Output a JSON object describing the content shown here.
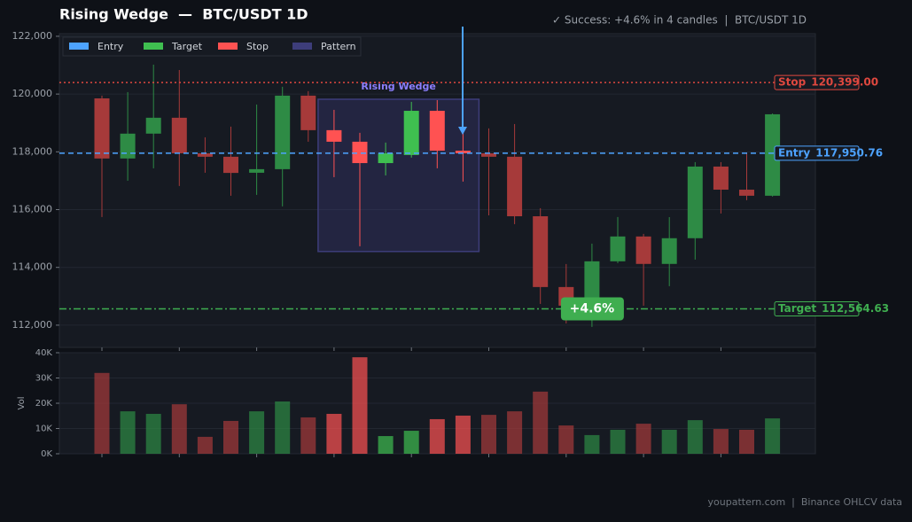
{
  "chart_data": {
    "type": "candlestick",
    "title": "Rising Wedge  —  BTC/USDT 1D",
    "subtitle": "✓ Success: +4.6% in 4 candles  |  BTC/USDT 1D",
    "footer": "youpattern.com  |  Binance OHLCV data",
    "open": [
      119850,
      117770,
      118630,
      119180,
      117950,
      117830,
      117276,
      117400,
      119945,
      118750,
      118350,
      117610,
      117890,
      119420,
      118040,
      117950,
      117830,
      115770,
      113320,
      112400,
      114210,
      115070,
      114120,
      115010,
      117490,
      116690,
      116480
    ],
    "high": [
      119945,
      120068,
      121018,
      120834,
      118503,
      118871,
      119638,
      120252,
      120100,
      119454,
      118656,
      118320,
      119730,
      119790,
      118870,
      118810,
      118963,
      116049,
      114117,
      114822,
      115742,
      115160,
      115740,
      117644,
      117644,
      117980,
      119330
    ],
    "low": [
      115742,
      117000,
      117429,
      116816,
      117276,
      116479,
      116510,
      116110,
      118350,
      117123,
      114730,
      117184,
      117800,
      117430,
      116970,
      115800,
      115497,
      112736,
      112060,
      111939,
      114147,
      112675,
      113350,
      114270,
      115865,
      116325,
      116450
    ],
    "close": [
      117770,
      118630,
      119180,
      117950,
      117830,
      117270,
      117400,
      119945,
      118750,
      118350,
      117610,
      117950,
      119420,
      118040,
      117950,
      117830,
      115770,
      113320,
      112675,
      114210,
      115070,
      114120,
      115010,
      117490,
      116690,
      116480,
      119300
    ],
    "candle_colors": [
      "#a63a3a",
      "#2e8b45",
      "#2e8b45",
      "#a63a3a",
      "#a63a3a",
      "#a63a3a",
      "#2e8b45",
      "#2e8b45",
      "#a63a3a",
      "#ff5252",
      "#ff5252",
      "#3fbf50",
      "#3fbf50",
      "#ff5252",
      "#ff5252",
      "#a63a3a",
      "#a63a3a",
      "#a63a3a",
      "#a63a3a",
      "#2e8b45",
      "#2e8b45",
      "#a63a3a",
      "#2e8b45",
      "#2e8b45",
      "#a63a3a",
      "#a63a3a",
      "#2e8b45"
    ],
    "ylim": [
      111230,
      122090
    ],
    "yticks": [
      {
        "value": 112000,
        "label": "112,000"
      },
      {
        "value": 114000,
        "label": "114,000"
      },
      {
        "value": 116000,
        "label": "116,000"
      },
      {
        "value": 118000,
        "label": "118,000"
      },
      {
        "value": 120000,
        "label": "120,000"
      },
      {
        "value": 122000,
        "label": "122,000"
      }
    ],
    "volume": {
      "label": "Vol",
      "values": [
        32,
        16.8,
        15.8,
        19.6,
        6.7,
        13,
        16.8,
        20.7,
        14.4,
        15.8,
        38.2,
        7,
        9.1,
        13.7,
        15.1,
        15.4,
        16.8,
        24.6,
        11.2,
        7.4,
        9.5,
        11.9,
        9.5,
        13.3,
        9.8,
        9.5,
        14
      ],
      "ylim": [
        0,
        40
      ],
      "yticks": [
        {
          "value": 0,
          "label": "0K"
        },
        {
          "value": 10,
          "label": "10K"
        },
        {
          "value": 20,
          "label": "20K"
        },
        {
          "value": 30,
          "label": "30K"
        },
        {
          "value": 40,
          "label": "40K"
        }
      ]
    },
    "levels": [
      {
        "name": "Stop",
        "value": 120399,
        "value_label": "120,399.00",
        "color": "#e0483f",
        "dash": "2,3"
      },
      {
        "name": "Entry",
        "value": 117950.76,
        "value_label": "117,950.76",
        "color": "#4da3ff",
        "dash": "6,4"
      },
      {
        "name": "Target",
        "value": 112564.63,
        "value_label": "112,564.63",
        "color": "#3fae50",
        "dash": "8,3,2,3"
      }
    ],
    "pattern": {
      "label": "Rising Wedge",
      "top": 119820,
      "bottom": 114550,
      "color": "#3d3d7a"
    },
    "annotation": {
      "text": "+4.6%",
      "color": "#3fae50"
    },
    "legend": [
      {
        "name": "Entry",
        "color": "#4da3ff"
      },
      {
        "name": "Target",
        "color": "#3fbf50"
      },
      {
        "name": "Stop",
        "color": "#ff5252"
      },
      {
        "name": "Pattern",
        "color": "#3d3d7a"
      }
    ],
    "grid": true
  }
}
